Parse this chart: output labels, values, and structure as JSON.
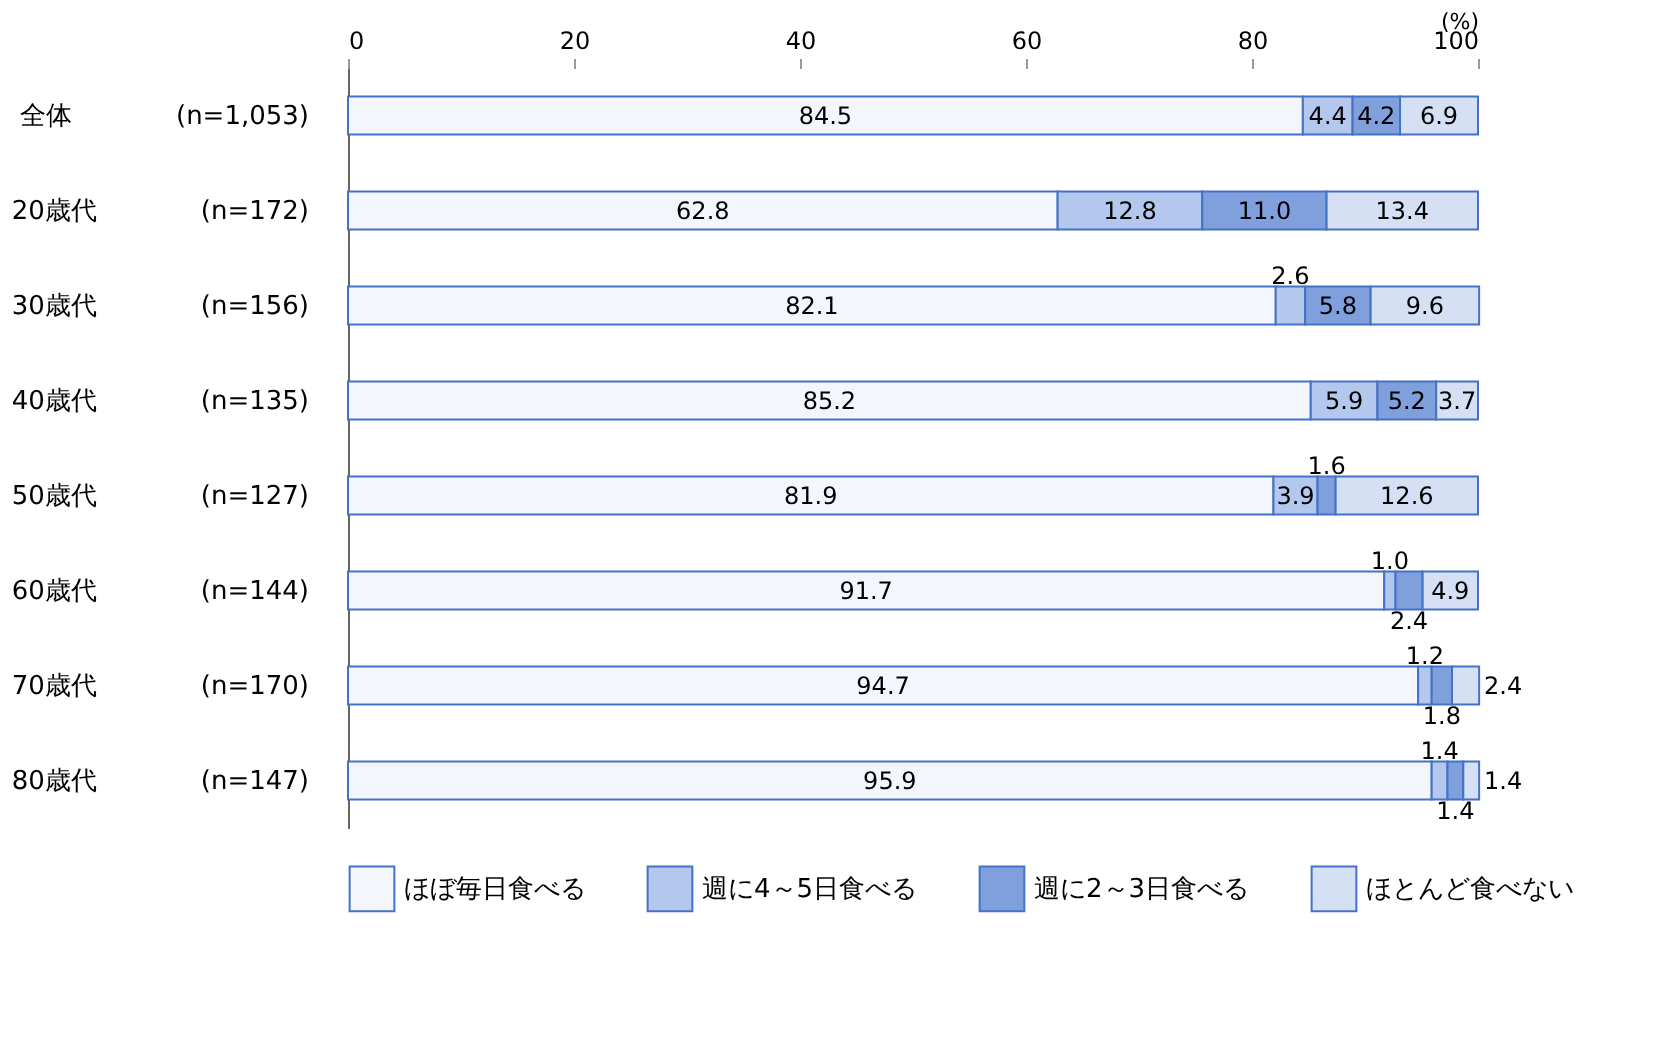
{
  "chart_data": {
    "type": "bar",
    "orientation": "horizontal",
    "stacked": true,
    "legend": "bottom",
    "grid": false,
    "xlabel": "(%)",
    "categories": [
      "全体　　　　(n=1,053)",
      "20歳代　　　　(n=172)",
      "30歳代　　　　(n=156)",
      "40歳代　　　　(n=135)",
      "50歳代　　　　(n=127)",
      "60歳代　　　　(n=144)",
      "70歳代　　　　(n=170)",
      "80歳代　　　　(n=147)"
    ],
    "xlim": [
      0,
      100
    ],
    "xticks": [
      0,
      20,
      40,
      60,
      80,
      100
    ],
    "series": [
      {
        "name": "ほぼ毎日食べる",
        "color": "#f3f6fc",
        "values": [
          84.5,
          62.8,
          82.1,
          85.2,
          81.9,
          91.7,
          94.7,
          95.9
        ],
        "value_labels": [
          "84.5",
          "62.8",
          "82.1",
          "85.2",
          "81.9",
          "91.7",
          "94.7",
          "95.9"
        ]
      },
      {
        "name": "週に4～5日食べる",
        "color": "#b4c7ec",
        "values": [
          4.4,
          12.8,
          2.6,
          5.9,
          3.9,
          1.0,
          1.2,
          1.4
        ],
        "value_labels": [
          "4.4",
          "12.8",
          "2.6",
          "5.9",
          "3.9",
          "1.0",
          "1.2",
          "1.4"
        ]
      },
      {
        "name": "週に2～3日食べる",
        "color": "#7f9fdd",
        "values": [
          4.2,
          11.0,
          5.8,
          5.2,
          1.6,
          2.4,
          1.8,
          1.4
        ],
        "value_labels": [
          "4.2",
          "11.0",
          "5.8",
          "5.2",
          "1.6",
          "2.4",
          "1.8",
          "1.4"
        ]
      },
      {
        "name": "ほとんど食べない",
        "color": "#d6e0f5",
        "values": [
          6.9,
          13.4,
          9.6,
          3.7,
          12.6,
          4.9,
          2.4,
          1.4
        ],
        "value_labels": [
          "6.9",
          "13.4",
          "9.6",
          "3.7",
          "12.6",
          "4.9",
          "2.4",
          "1.4"
        ]
      }
    ]
  }
}
